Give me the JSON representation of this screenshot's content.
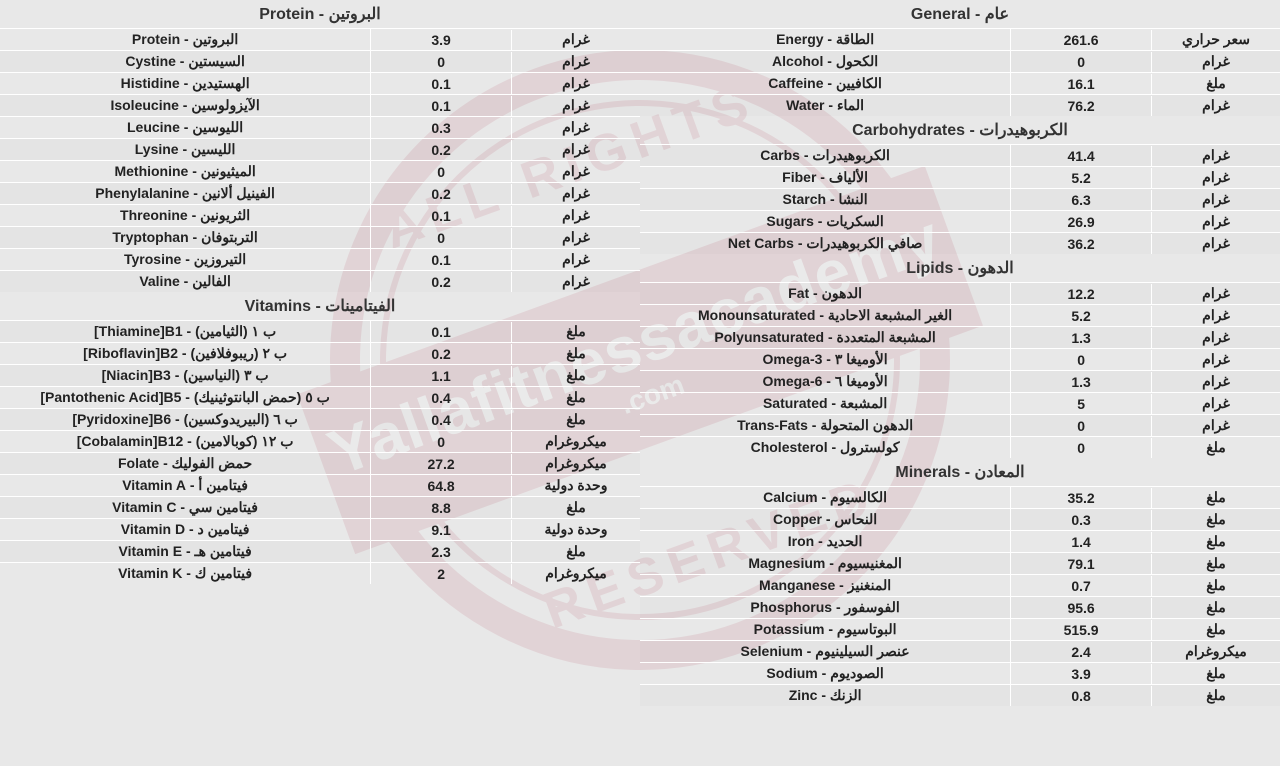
{
  "watermark": {
    "arc_top": "ALL RIGHTS",
    "arc_bottom": "RESERVED",
    "band_line1": "Yallafitnessacademy",
    "band_line2": ".com",
    "circle_color": "#b3425a"
  },
  "left": {
    "sections": [
      {
        "title": "البروتين - Protein",
        "rows": [
          {
            "name": "البروتين - Protein",
            "value": "3.9",
            "unit": "غرام"
          },
          {
            "name": "السيستين - Cystine",
            "value": "0",
            "unit": "غرام"
          },
          {
            "name": "الهستيدين - Histidine",
            "value": "0.1",
            "unit": "غرام"
          },
          {
            "name": "الآيزولوسين - Isoleucine",
            "value": "0.1",
            "unit": "غرام"
          },
          {
            "name": "الليوسين - Leucine",
            "value": "0.3",
            "unit": "غرام"
          },
          {
            "name": "الليسين - Lysine",
            "value": "0.2",
            "unit": "غرام"
          },
          {
            "name": "الميثيونين - Methionine",
            "value": "0",
            "unit": "غرام"
          },
          {
            "name": "الفينيل ألانين - Phenylalanine",
            "value": "0.2",
            "unit": "غرام"
          },
          {
            "name": "الثريونين - Threonine",
            "value": "0.1",
            "unit": "غرام"
          },
          {
            "name": "التربتوفان - Tryptophan",
            "value": "0",
            "unit": "غرام"
          },
          {
            "name": "التيروزين - Tyrosine",
            "value": "0.1",
            "unit": "غرام"
          },
          {
            "name": "الفالين - Valine",
            "value": "0.2",
            "unit": "غرام"
          }
        ]
      },
      {
        "title": "الفيتامينات - Vitamins",
        "rows": [
          {
            "name": "ب ١ (الثيامين) - Thiamine]B1]",
            "value": "0.1",
            "unit": "ملغ"
          },
          {
            "name": "ب ٢ (ريبوفلافين) - Riboflavin]B2]",
            "value": "0.2",
            "unit": "ملغ"
          },
          {
            "name": "ب ٣ (النياسين) - Niacin]B3]",
            "value": "1.1",
            "unit": "ملغ"
          },
          {
            "name": "ب ٥ (حمض البانتوثينيك) - Pantothenic Acid]B5]",
            "value": "0.4",
            "unit": "ملغ"
          },
          {
            "name": "ب ٦ (البيريدوكسين) - Pyridoxine]B6]",
            "value": "0.4",
            "unit": "ملغ"
          },
          {
            "name": "ب ١٢ (كوبالامين) - Cobalamin]B12]",
            "value": "0",
            "unit": "ميكروغرام"
          },
          {
            "name": "حمض الفوليك - Folate",
            "value": "27.2",
            "unit": "ميكروغرام"
          },
          {
            "name": "فيتامين أ - Vitamin A",
            "value": "64.8",
            "unit": "وحدة دولية"
          },
          {
            "name": "فيتامين سي - Vitamin C",
            "value": "8.8",
            "unit": "ملغ"
          },
          {
            "name": "فيتامين د - Vitamin D",
            "value": "9.1",
            "unit": "وحدة دولية"
          },
          {
            "name": "فيتامين هـ - Vitamin E",
            "value": "2.3",
            "unit": "ملغ"
          },
          {
            "name": "فيتامين ك - Vitamin K",
            "value": "2",
            "unit": "ميكروغرام"
          }
        ]
      }
    ]
  },
  "right": {
    "sections": [
      {
        "title": "عام - General",
        "rows": [
          {
            "name": "الطاقة - Energy",
            "value": "261.6",
            "unit": "سعر حراري"
          },
          {
            "name": "الكحول - Alcohol",
            "value": "0",
            "unit": "غرام"
          },
          {
            "name": "الكافيين - Caffeine",
            "value": "16.1",
            "unit": "ملغ"
          },
          {
            "name": "الماء - Water",
            "value": "76.2",
            "unit": "غرام"
          }
        ]
      },
      {
        "title": "الكربوهيدرات - Carbohydrates",
        "rows": [
          {
            "name": "الكربوهيدرات - Carbs",
            "value": "41.4",
            "unit": "غرام"
          },
          {
            "name": "الألياف - Fiber",
            "value": "5.2",
            "unit": "غرام"
          },
          {
            "name": "النشا - Starch",
            "value": "6.3",
            "unit": "غرام"
          },
          {
            "name": "السكريات - Sugars",
            "value": "26.9",
            "unit": "غرام"
          },
          {
            "name": "صافي الكربوهيدرات - Net Carbs",
            "value": "36.2",
            "unit": "غرام"
          }
        ]
      },
      {
        "title": "الدهون - Lipids",
        "rows": [
          {
            "name": "الدهون - Fat",
            "value": "12.2",
            "unit": "غرام"
          },
          {
            "name": "الغير المشبعة الاحادية - Monounsaturated",
            "value": "5.2",
            "unit": "غرام"
          },
          {
            "name": "المشبعة المتعددة - Polyunsaturated",
            "value": "1.3",
            "unit": "غرام"
          },
          {
            "name": "الأوميغا ٣ - Omega-3",
            "value": "0",
            "unit": "غرام"
          },
          {
            "name": "الأوميغا ٦ - Omega-6",
            "value": "1.3",
            "unit": "غرام"
          },
          {
            "name": "المشبعة - Saturated",
            "value": "5",
            "unit": "غرام"
          },
          {
            "name": "الدهون المتحولة - Trans-Fats",
            "value": "0",
            "unit": "غرام"
          },
          {
            "name": "كولسترول - Cholesterol",
            "value": "0",
            "unit": "ملغ"
          }
        ]
      },
      {
        "title": "المعادن - Minerals",
        "rows": [
          {
            "name": "الكالسيوم - Calcium",
            "value": "35.2",
            "unit": "ملغ"
          },
          {
            "name": "النحاس - Copper",
            "value": "0.3",
            "unit": "ملغ"
          },
          {
            "name": "الحديد - Iron",
            "value": "1.4",
            "unit": "ملغ"
          },
          {
            "name": "المغنيسيوم - Magnesium",
            "value": "79.1",
            "unit": "ملغ"
          },
          {
            "name": "المنغنيز - Manganese",
            "value": "0.7",
            "unit": "ملغ"
          },
          {
            "name": "الفوسفور - Phosphorus",
            "value": "95.6",
            "unit": "ملغ"
          },
          {
            "name": "البوتاسيوم - Potassium",
            "value": "515.9",
            "unit": "ملغ"
          },
          {
            "name": "عنصر السيلينيوم - Selenium",
            "value": "2.4",
            "unit": "ميكروغرام"
          },
          {
            "name": "الصوديوم - Sodium",
            "value": "3.9",
            "unit": "ملغ"
          },
          {
            "name": "الزنك - Zinc",
            "value": "0.8",
            "unit": "ملغ"
          }
        ]
      }
    ]
  },
  "style": {
    "bg": "#e8e8e8",
    "text": "#333333",
    "divider": "#ffffff",
    "fontsize_row": 14,
    "fontsize_title": 16
  }
}
